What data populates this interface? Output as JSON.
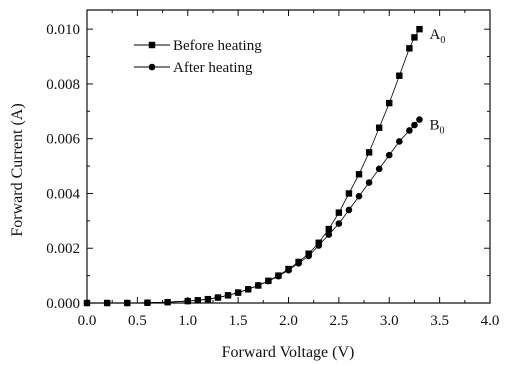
{
  "chart_data": {
    "type": "scatter",
    "title": "",
    "xlabel": "Forward Voltage (V)",
    "ylabel": "Forward Current (A)",
    "xlim": [
      0.0,
      4.0
    ],
    "ylim": [
      0.0,
      0.0107
    ],
    "x_ticks": [
      "0.0",
      "0.5",
      "1.0",
      "1.5",
      "2.0",
      "2.5",
      "3.0",
      "3.5",
      "4.0"
    ],
    "y_ticks": [
      "0.000",
      "0.002",
      "0.004",
      "0.006",
      "0.008",
      "0.010"
    ],
    "grid": false,
    "legend_position": "top-left",
    "series": [
      {
        "name": "Before heating",
        "marker": "square",
        "color": "#000000",
        "end_label": "A",
        "end_label_sub": "0",
        "x": [
          0.0,
          0.2,
          0.4,
          0.6,
          0.8,
          1.0,
          1.1,
          1.2,
          1.3,
          1.4,
          1.5,
          1.6,
          1.7,
          1.8,
          1.9,
          2.0,
          2.1,
          2.2,
          2.3,
          2.4,
          2.5,
          2.6,
          2.7,
          2.8,
          2.9,
          3.0,
          3.1,
          3.2,
          3.25,
          3.3
        ],
        "y": [
          0.0,
          0.0,
          0.0,
          1e-05,
          3e-05,
          7e-05,
          0.0001,
          0.00014,
          0.0002,
          0.00028,
          0.00038,
          0.0005,
          0.00064,
          0.00081,
          0.001,
          0.00124,
          0.0015,
          0.0018,
          0.0022,
          0.0027,
          0.0033,
          0.004,
          0.0047,
          0.0055,
          0.0064,
          0.0073,
          0.0083,
          0.0093,
          0.0097,
          0.01
        ]
      },
      {
        "name": "After heating",
        "marker": "circle",
        "color": "#000000",
        "end_label": "B",
        "end_label_sub": "0",
        "x": [
          0.0,
          0.2,
          0.4,
          0.6,
          0.8,
          1.0,
          1.1,
          1.2,
          1.3,
          1.4,
          1.5,
          1.6,
          1.7,
          1.8,
          1.9,
          2.0,
          2.1,
          2.2,
          2.3,
          2.4,
          2.5,
          2.6,
          2.7,
          2.8,
          2.9,
          3.0,
          3.1,
          3.2,
          3.25,
          3.3
        ],
        "y": [
          0.0,
          0.0,
          0.0,
          1e-05,
          3e-05,
          7e-05,
          0.0001,
          0.00014,
          0.0002,
          0.00028,
          0.00038,
          0.0005,
          0.00064,
          0.0008,
          0.00098,
          0.0012,
          0.00145,
          0.00172,
          0.0021,
          0.0025,
          0.0029,
          0.0034,
          0.0039,
          0.0044,
          0.0049,
          0.0054,
          0.0059,
          0.0063,
          0.0065,
          0.0067
        ]
      }
    ]
  }
}
